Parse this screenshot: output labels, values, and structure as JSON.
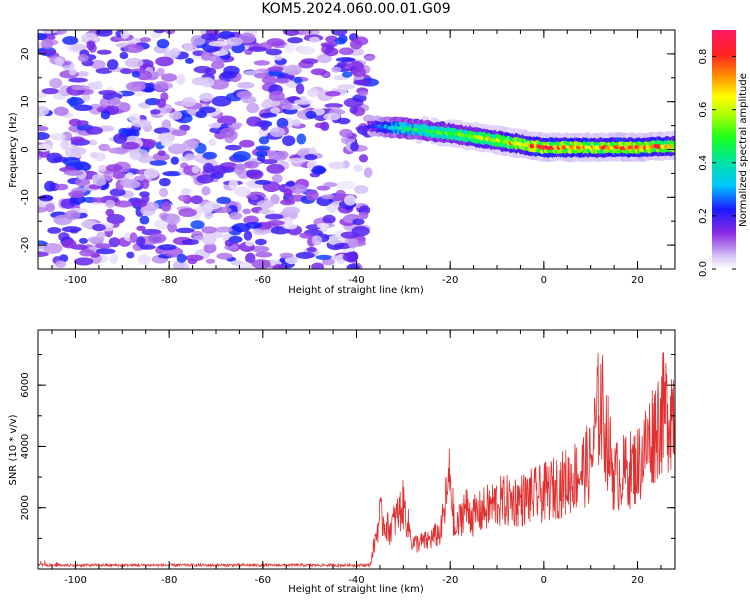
{
  "title": "KOM5.2024.060.00.01.G09",
  "colors": {
    "snr_line": "#e03030",
    "axis": "#000000"
  },
  "chart_data": [
    {
      "type": "heatmap",
      "xlabel": "Height of straight line (km)",
      "ylabel": "Frequency (Hz)",
      "xlim": [
        -108,
        28
      ],
      "ylim": [
        -25,
        25
      ],
      "x_ticks": [
        "-100",
        "-80",
        "-60",
        "-40",
        "-20",
        "0",
        "20"
      ],
      "y_ticks": [
        "-20",
        "-10",
        "0",
        "10",
        "20"
      ],
      "colorbar": {
        "label": "Normalized spectral amplitude",
        "range": [
          0,
          0.9
        ],
        "ticks": [
          "0.0",
          "0.2",
          "0.4",
          "0.6",
          "0.8"
        ]
      },
      "noise_region": {
        "x": [
          -108,
          -37
        ],
        "y": [
          -25,
          25
        ],
        "amplitude": [
          0.0,
          0.25
        ]
      },
      "ridge": {
        "x": [
          -37,
          -30,
          -20,
          -10,
          0,
          10,
          20,
          28
        ],
        "y": [
          5,
          4.5,
          3.5,
          2,
          0.5,
          0.5,
          0.5,
          0.8
        ],
        "amplitude": [
          0.2,
          0.45,
          0.55,
          0.65,
          0.8,
          0.75,
          0.85,
          0.7
        ]
      }
    },
    {
      "type": "line",
      "xlabel": "Height of straight line (km)",
      "ylabel": "SNR (10 * v/v)",
      "xlim": [
        -108,
        28
      ],
      "ylim": [
        0,
        7800
      ],
      "x_ticks": [
        "-100",
        "-80",
        "-60",
        "-40",
        "-20",
        "0",
        "20"
      ],
      "y_ticks": [
        "2000",
        "4000",
        "6000"
      ],
      "grid": false,
      "series": [
        {
          "x": [
            -108,
            -100,
            -90,
            -80,
            -70,
            -60,
            -50,
            -40,
            -37,
            -35,
            -33,
            -30,
            -28,
            -25,
            -22,
            -20,
            -19,
            -17,
            -15,
            -10,
            -5,
            0,
            5,
            10,
            12,
            15,
            20,
            25,
            28
          ],
          "y": [
            120,
            160,
            130,
            120,
            120,
            120,
            120,
            150,
            250,
            2300,
            1700,
            2800,
            1100,
            1200,
            1600,
            4100,
            1500,
            2700,
            2300,
            2900,
            3000,
            3300,
            3800,
            4600,
            7400,
            4000,
            4500,
            6700,
            7100
          ]
        }
      ]
    }
  ]
}
